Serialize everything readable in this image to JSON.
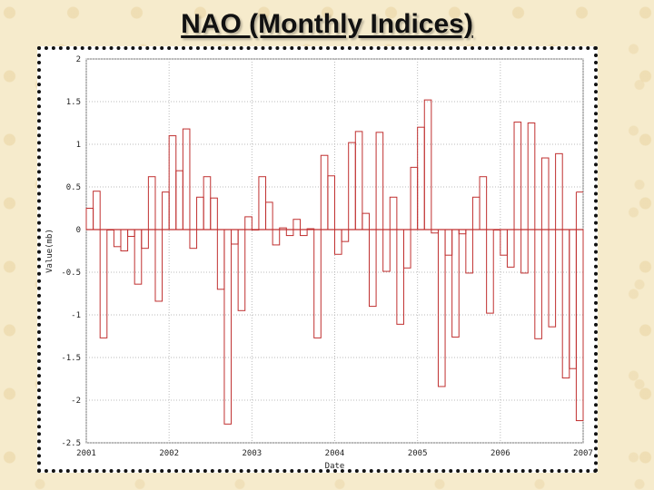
{
  "slide": {
    "title": "NAO (Monthly Indices)"
  },
  "chart_data": {
    "type": "bar",
    "style": "step-bar",
    "xlabel": "Date",
    "ylabel": "Value(mb)",
    "xlim": [
      2001,
      2007
    ],
    "ylim": [
      -2.5,
      2
    ],
    "xticks": [
      "2001",
      "2002",
      "2003",
      "2004",
      "2005",
      "2006",
      "2007"
    ],
    "yticks": [
      "2",
      "1.5",
      "1",
      "0.5",
      "0",
      "-0.5",
      "-1",
      "-1.5",
      "-2",
      "-2.5"
    ],
    "grid": true,
    "bar_color": "#c03030",
    "start": "2001-01",
    "categories": [
      "2001-01",
      "2001-02",
      "2001-03",
      "2001-04",
      "2001-05",
      "2001-06",
      "2001-07",
      "2001-08",
      "2001-09",
      "2001-10",
      "2001-11",
      "2001-12",
      "2002-01",
      "2002-02",
      "2002-03",
      "2002-04",
      "2002-05",
      "2002-06",
      "2002-07",
      "2002-08",
      "2002-09",
      "2002-10",
      "2002-11",
      "2002-12",
      "2003-01",
      "2003-02",
      "2003-03",
      "2003-04",
      "2003-05",
      "2003-06",
      "2003-07",
      "2003-08",
      "2003-09",
      "2003-10",
      "2003-11",
      "2003-12",
      "2004-01",
      "2004-02",
      "2004-03",
      "2004-04",
      "2004-05",
      "2004-06",
      "2004-07",
      "2004-08",
      "2004-09",
      "2004-10",
      "2004-11",
      "2004-12",
      "2005-01",
      "2005-02",
      "2005-03",
      "2005-04",
      "2005-05",
      "2005-06",
      "2005-07",
      "2005-08",
      "2005-09",
      "2005-10",
      "2005-11",
      "2005-12",
      "2006-01",
      "2006-02",
      "2006-03",
      "2006-04",
      "2006-05",
      "2006-06",
      "2006-07",
      "2006-08",
      "2006-09",
      "2006-10",
      "2006-11",
      "2006-12"
    ],
    "values": [
      0.25,
      0.45,
      -1.27,
      0,
      -0.2,
      -0.25,
      -0.08,
      -0.64,
      -0.22,
      0.62,
      -0.84,
      0.44,
      1.1,
      0.69,
      1.18,
      -0.22,
      0.38,
      0.62,
      0.37,
      -0.7,
      -2.28,
      -0.17,
      -0.95,
      0.15,
      0.0,
      0.62,
      0.32,
      -0.18,
      0.02,
      -0.07,
      0.12,
      -0.07,
      0.01,
      -1.27,
      0.87,
      0.63,
      -0.29,
      -0.14,
      1.02,
      1.15,
      0.19,
      -0.9,
      1.14,
      -0.49,
      0.38,
      -1.11,
      -0.45,
      0.73,
      1.2,
      1.52,
      -0.04,
      -1.84,
      -0.3,
      -1.26,
      -0.05,
      -0.51,
      0.38,
      0.62,
      -0.98,
      0.0,
      -0.3,
      -0.44,
      1.26,
      -0.51,
      1.25,
      -1.28,
      0.84,
      -1.14,
      0.89,
      -1.74,
      -1.63,
      -2.24
    ],
    "trailing": {
      "x": "2007-01",
      "value": 0.44
    }
  }
}
